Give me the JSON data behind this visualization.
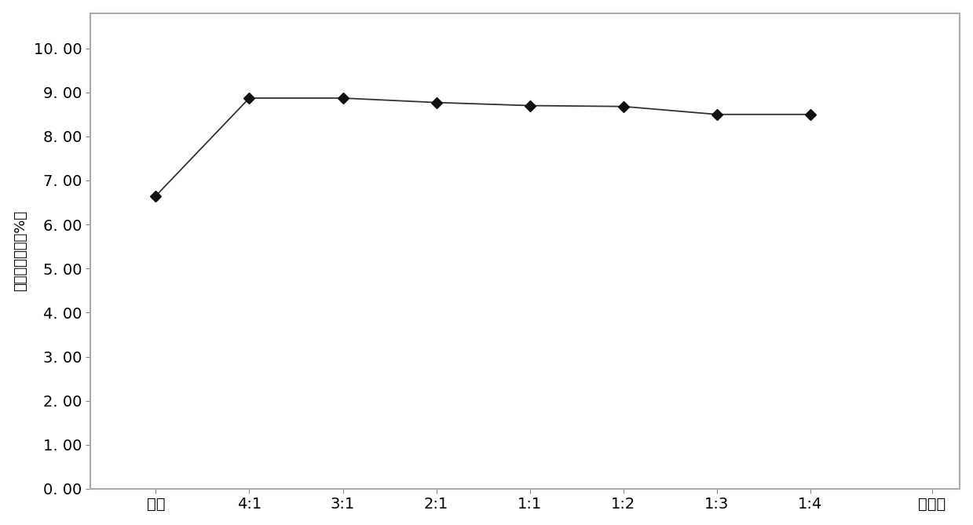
{
  "x_labels": [
    "对照",
    "4:1",
    "3:1",
    "2:1",
    "1:1",
    "1:2",
    "1:3",
    "1:4",
    "混合比"
  ],
  "x_values": [
    0,
    1,
    2,
    3,
    4,
    5,
    6,
    7
  ],
  "y_values": [
    6.65,
    8.87,
    8.87,
    8.77,
    8.7,
    8.68,
    8.5,
    8.5
  ],
  "ylabel": "粗蛋白质含量（%）",
  "ylim": [
    0,
    10.8
  ],
  "yticks": [
    0.0,
    1.0,
    2.0,
    3.0,
    4.0,
    5.0,
    6.0,
    7.0,
    8.0,
    9.0,
    10.0
  ],
  "ytick_labels": [
    "0. 00",
    "1. 00",
    "2. 00",
    "3. 00",
    "4. 00",
    "5. 00",
    "6. 00",
    "7. 00",
    "8. 00",
    "9. 00",
    "10. 00"
  ],
  "line_color": "#333333",
  "marker": "D",
  "marker_color": "#111111",
  "marker_size": 7,
  "background_color": "#ffffff",
  "plot_bg_color": "#ffffff",
  "font_size_tick": 14,
  "font_size_label": 13,
  "border_color": "#aaaaaa",
  "border_width": 1.5
}
